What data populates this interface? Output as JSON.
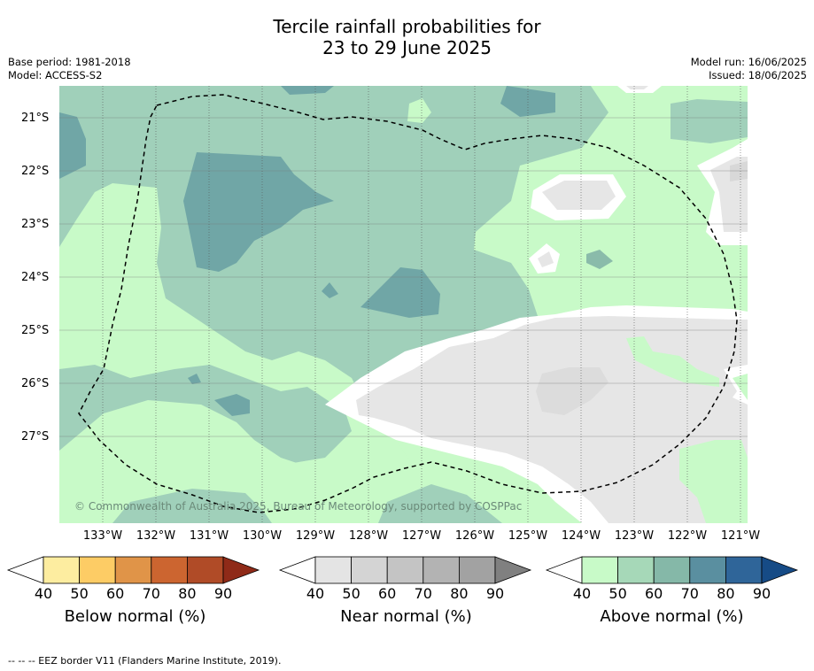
{
  "title": {
    "line1": "Tercile rainfall probabilities for",
    "line2": "23 to 29 June 2025"
  },
  "meta_left": {
    "base_period": "Base period: 1981-2018",
    "model": "Model: ACCESS-S2"
  },
  "meta_right": {
    "model_run": "Model run: 16/06/2025",
    "issued": "Issued: 18/06/2025"
  },
  "map": {
    "lat_labels": [
      "21°S",
      "22°S",
      "23°S",
      "24°S",
      "25°S",
      "26°S",
      "27°S"
    ],
    "lon_labels": [
      "133°W",
      "132°W",
      "131°W",
      "130°W",
      "129°W",
      "128°W",
      "127°W",
      "126°W",
      "125°W",
      "124°W",
      "123°W",
      "122°W",
      "121°W"
    ],
    "watermark": "© Commonwealth of Australia 2025, Bureau of Meteorology, supported by COSPPac",
    "colors": {
      "above_40": "#c8fac8",
      "above_50": "#a1d4ba",
      "above_60": "#8abbaa",
      "above_70": "#70a6a6",
      "near_40": "#e6e6e6",
      "near_50": "#dcdcdc",
      "border": "#000000"
    }
  },
  "colorbars": [
    {
      "label": "Below normal (%)",
      "ticks": [
        "40",
        "50",
        "60",
        "70",
        "80",
        "90"
      ],
      "colors": [
        "#ffffff",
        "#fdeda0",
        "#fdcc65",
        "#e09448",
        "#cc6530",
        "#b04b27",
        "#8f2a18"
      ]
    },
    {
      "label": "Near normal (%)",
      "ticks": [
        "40",
        "50",
        "60",
        "70",
        "80",
        "90"
      ],
      "colors": [
        "#ffffff",
        "#e4e4e4",
        "#d4d4d4",
        "#c4c4c4",
        "#b3b3b3",
        "#a2a2a2",
        "#808080"
      ]
    },
    {
      "label": "Above normal (%)",
      "ticks": [
        "40",
        "50",
        "60",
        "70",
        "80",
        "90"
      ],
      "colors": [
        "#ffffff",
        "#c8fac8",
        "#a6d8b8",
        "#85b8a8",
        "#5a8fa0",
        "#2f6599",
        "#164b86"
      ]
    }
  ],
  "footer": "-- -- -- EEZ border V11 (Flanders Marine Institute, 2019)."
}
